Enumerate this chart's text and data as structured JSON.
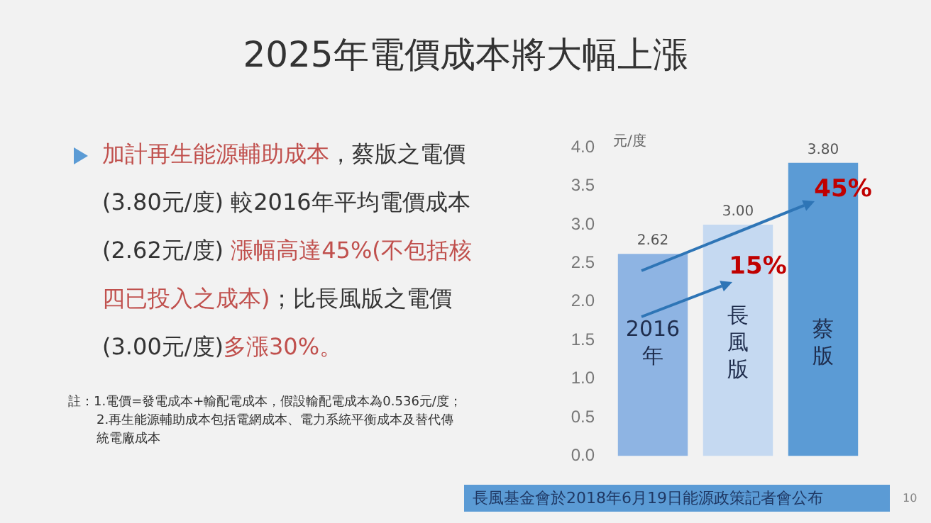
{
  "chart_data": {
    "type": "bar",
    "title": "2025年電價成本將大幅上漲",
    "ylabel": "元/度",
    "categories": [
      "2016年",
      "長風版",
      "蔡版"
    ],
    "values": [
      2.62,
      3.0,
      3.8
    ],
    "colors": [
      "#8eb4e3",
      "#c5d9f1",
      "#5b9bd5"
    ],
    "value_labels": [
      "2.62",
      "3.00",
      "3.80"
    ],
    "ylim": [
      0,
      4
    ],
    "yticks": [
      {
        "value": 0,
        "label": "0.0"
      },
      {
        "value": 0.5,
        "label": "0.5"
      },
      {
        "value": 1,
        "label": "1.0"
      },
      {
        "value": 1.5,
        "label": "1.5"
      },
      {
        "value": 2,
        "label": "2.0"
      },
      {
        "value": 2.5,
        "label": "2.5"
      },
      {
        "value": 3,
        "label": "3.0"
      },
      {
        "value": 3.5,
        "label": "3.5"
      },
      {
        "value": 4,
        "label": "4.0"
      }
    ],
    "grid": false,
    "legend": false,
    "annotations": [
      "15%",
      "45%",
      "加計再生能源輔助成本",
      "，蔡版之電價 (3.80元/度) 較2016年平均電價成本 (2.62元/度) ",
      "漲幅高達45%(不包括核四已投入之成本)",
      "；比長風版之電價(3.00元/度)",
      "多漲30%。",
      "註：1.電價=發電成本+輸配電成本，假設輸配電成本為0.536元/度；",
      "2.再生能源輔助成本包括電網成本、電力系統平衡成本及替代傳統電廠成本",
      "長風基金會於2018年6月19日能源政策記者會公布",
      "10"
    ]
  }
}
